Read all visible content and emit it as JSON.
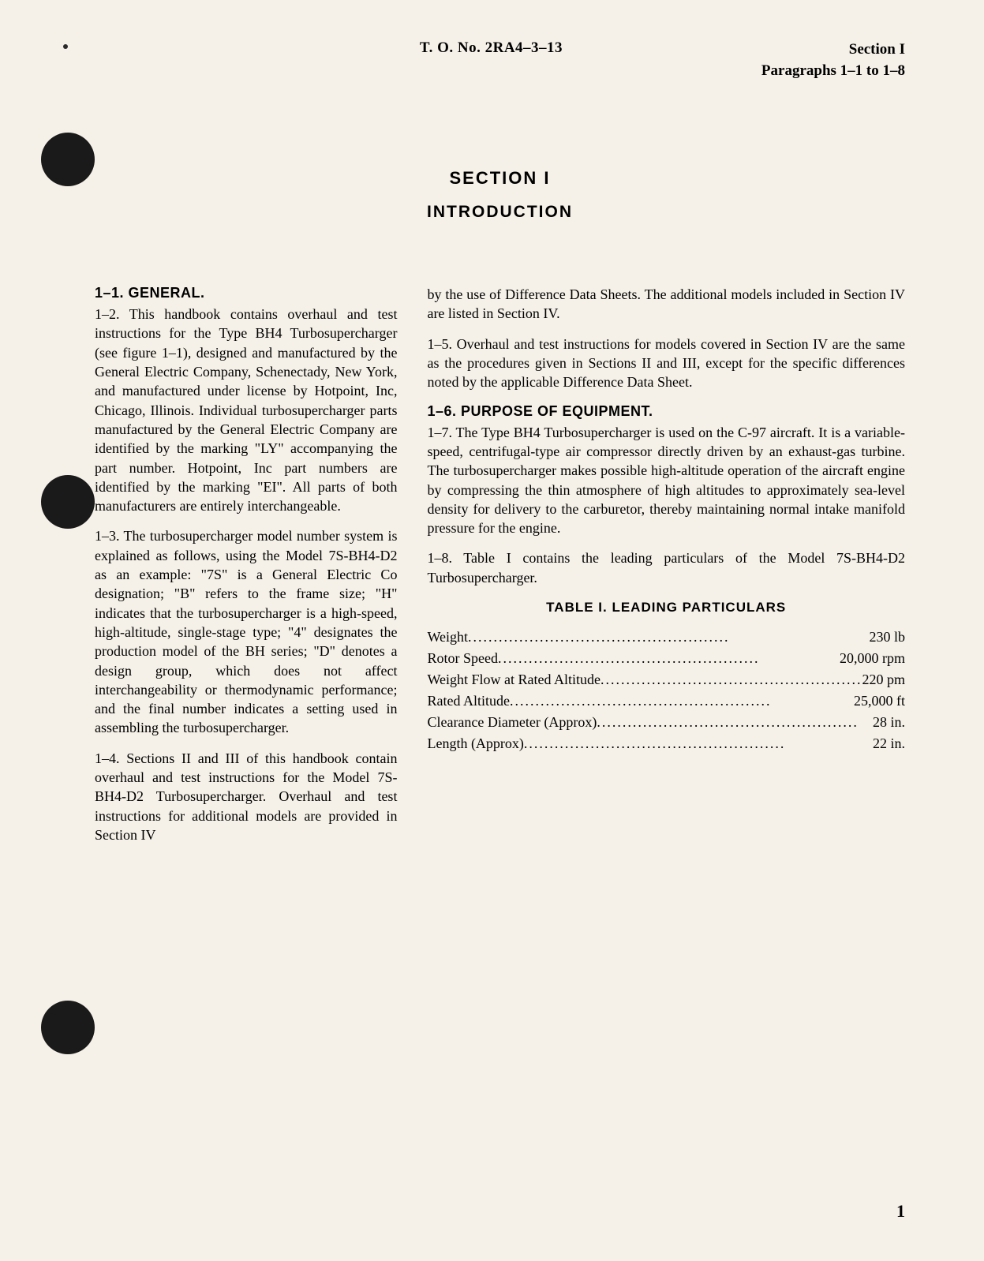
{
  "header": {
    "center": "T. O. No. 2RA4–3–13",
    "right_line1": "Section I",
    "right_line2": "Paragraphs 1–1 to 1–8"
  },
  "section": {
    "title": "SECTION I",
    "subtitle": "INTRODUCTION"
  },
  "left_column": {
    "heading1": "1–1. GENERAL.",
    "para1": "1–2. This handbook contains overhaul and test instructions for the Type BH4 Turbosupercharger (see figure 1–1), designed and manufactured by the General Electric Company, Schenectady, New York, and manufactured under license by Hotpoint, Inc, Chicago, Illinois. Individual turbosupercharger parts manufactured by the General Electric Company are identified by the marking \"LY\" accompanying the part number. Hotpoint, Inc part numbers are identified by the marking \"EI\". All parts of both manufacturers are entirely interchangeable.",
    "para2": "1–3. The turbosupercharger model number system is explained as follows, using the Model 7S-BH4-D2 as an example: \"7S\" is a General Electric Co designation; \"B\" refers to the frame size; \"H\" indicates that the turbosupercharger is a high-speed, high-altitude, single-stage type; \"4\" designates the production model of the BH series; \"D\" denotes a design group, which does not affect interchangeability or thermodynamic performance; and the final number indicates a setting used in assembling the turbosupercharger.",
    "para3": "1–4. Sections II and III of this handbook contain overhaul and test instructions for the Model 7S-BH4-D2 Turbosupercharger. Overhaul and test instructions for additional models are provided in Section IV"
  },
  "right_column": {
    "para1": "by the use of Difference Data Sheets. The additional models included in Section IV are listed in Section IV.",
    "para2": "1–5. Overhaul and test instructions for models covered in Section IV are the same as the procedures given in Sections II and III, except for the specific differences noted by the applicable Difference Data Sheet.",
    "heading2": "1–6. PURPOSE OF EQUIPMENT.",
    "para3": "1–7. The Type BH4 Turbosupercharger is used on the C-97 aircraft. It is a variable-speed, centrifugal-type air compressor directly driven by an exhaust-gas turbine. The turbosupercharger makes possible high-altitude operation of the aircraft engine by compressing the thin atmosphere of high altitudes to approximately sea-level density for delivery to the carburetor, thereby maintaining normal intake manifold pressure for the engine.",
    "para4": "1–8. Table I contains the leading particulars of the Model 7S-BH4-D2 Turbosupercharger."
  },
  "table": {
    "title": "TABLE I.  LEADING PARTICULARS",
    "rows": [
      {
        "label": "Weight",
        "value": "230 lb"
      },
      {
        "label": "Rotor Speed",
        "value": "20,000 rpm"
      },
      {
        "label": "Weight Flow at Rated Altitude",
        "value": "220 pm"
      },
      {
        "label": "Rated Altitude",
        "value": "25,000 ft"
      },
      {
        "label": "Clearance Diameter (Approx)",
        "value": "28 in."
      },
      {
        "label": "Length (Approx)",
        "value": "22 in."
      }
    ]
  },
  "page_number": "1",
  "colors": {
    "background": "#f5f1e8",
    "text": "#1a1a1a",
    "punch_hole": "#1a1a1a"
  }
}
